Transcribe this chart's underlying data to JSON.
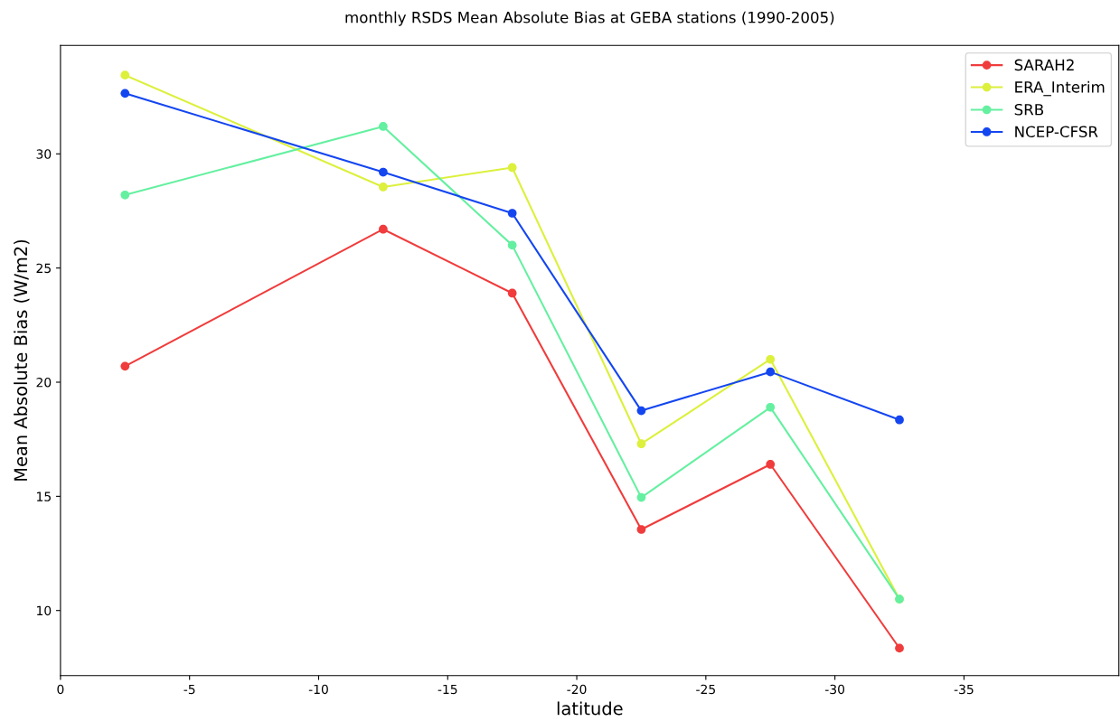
{
  "chart_data": {
    "type": "line",
    "title": "monthly RSDS Mean Absolute Bias at GEBA stations (1990-2005)",
    "xlabel": "latitude",
    "ylabel": "Mean Absolute Bias (W/m2)",
    "x": [
      -2.5,
      -12.5,
      -17.5,
      -22.5,
      -27.5,
      -32.5
    ],
    "series": [
      {
        "name": "SARAH2",
        "color": "#f03c3c",
        "values": [
          20.7,
          26.7,
          23.9,
          13.55,
          16.4,
          8.35
        ]
      },
      {
        "name": "ERA_Interim",
        "color": "#dcf03c",
        "values": [
          33.45,
          28.55,
          29.4,
          17.3,
          21.0,
          10.5
        ]
      },
      {
        "name": "SRB",
        "color": "#64f0a0",
        "values": [
          28.2,
          31.2,
          26.0,
          14.95,
          18.9,
          10.5
        ]
      },
      {
        "name": "NCEP-CFSR",
        "color": "#1446f0",
        "values": [
          32.65,
          29.2,
          27.4,
          18.75,
          20.45,
          18.35
        ]
      }
    ],
    "xlim": [
      0,
      -41
    ],
    "xticks": [
      0,
      -5,
      -10,
      -15,
      -20,
      -25,
      -30,
      -35
    ],
    "ylim": [
      7.15,
      34.75
    ],
    "yticks": [
      10,
      15,
      20,
      25,
      30
    ],
    "grid": false,
    "legend": "top right",
    "marker": "circle",
    "line_style": "solid"
  }
}
